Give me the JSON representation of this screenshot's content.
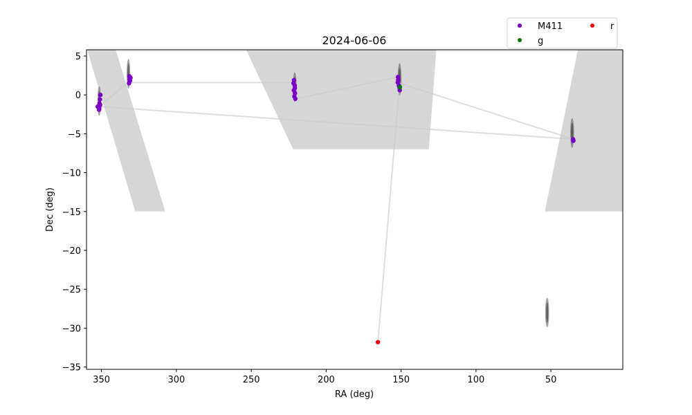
{
  "chart_data": {
    "type": "scatter",
    "title": "2024-06-06",
    "xlabel": "RA (deg)",
    "ylabel": "Dec (deg)",
    "xlim": [
      360,
      2
    ],
    "ylim": [
      -35.3,
      5.8
    ],
    "xticks": [
      350,
      300,
      250,
      200,
      150,
      100,
      50
    ],
    "yticks": [
      5,
      0,
      -5,
      -10,
      -15,
      -20,
      -25,
      -30,
      -35
    ],
    "grid": false,
    "legend": {
      "placement": "upper-right, outside plot area",
      "entries": [
        {
          "name": "M411",
          "color": "#7a00c8"
        },
        {
          "name": "g",
          "color": "#007a00"
        },
        {
          "name": "r",
          "color": "#ff0000"
        }
      ]
    },
    "footprint_color": "#b4b4b4",
    "footprint_regions": [
      {
        "ra": [
          359.5,
          340.5,
          307.5,
          327.5
        ],
        "dec": [
          [
            5.8,
            5.8
          ],
          [
            -15.0,
            -15.0
          ]
        ]
      },
      {
        "ra": [
          253.5,
          126.5,
          131.5,
          222.0
        ],
        "dec": [
          [
            5.8,
            5.8
          ],
          [
            -7.0,
            -7.0
          ]
        ]
      },
      {
        "ra": [
          32.0,
          2.0,
          2.0,
          54.0
        ],
        "dec": [
          [
            5.8,
            5.8
          ],
          [
            -15.0,
            -15.0
          ]
        ]
      }
    ],
    "dense_clusters": [
      {
        "ra": 351.5,
        "dec": -0.8,
        "ra_halfwidth": 1.2,
        "dec_halfheight": 1.9
      },
      {
        "ra": 332.0,
        "dec": 2.7,
        "ra_halfwidth": 1.2,
        "dec_halfheight": 1.9
      },
      {
        "ra": 221.0,
        "dec": 1.0,
        "ra_halfwidth": 1.3,
        "dec_halfheight": 1.9
      },
      {
        "ra": 151.0,
        "dec": 2.0,
        "ra_halfwidth": 1.3,
        "dec_halfheight": 2.1
      },
      {
        "ra": 35.8,
        "dec": -4.9,
        "ra_halfwidth": 1.3,
        "dec_halfheight": 1.9
      },
      {
        "ra": 52.5,
        "dec": -28.0,
        "ra_halfwidth": 1.3,
        "dec_halfheight": 1.9
      }
    ],
    "path": {
      "color": "#c8c8c8",
      "ra": [
        350.5,
        331.0,
        330.0,
        221.0,
        220.0,
        152.0,
        151.0,
        165.5,
        151.0,
        35.0,
        351.0
      ],
      "dec": [
        -1.3,
        1.8,
        1.6,
        1.6,
        -0.5,
        2.3,
        1.5,
        -31.8,
        1.5,
        -5.7,
        -1.5
      ]
    },
    "series": [
      {
        "name": "M411",
        "color": "#7a00c8",
        "points": [
          [
            352.5,
            -1.5
          ],
          [
            351.6,
            -1.9
          ],
          [
            351.0,
            -0.6
          ],
          [
            350.7,
            0.0
          ],
          [
            351.3,
            -1.1
          ],
          [
            350.9,
            -1.3
          ],
          [
            351.5,
            -1.7
          ],
          [
            331.4,
            2.4
          ],
          [
            331.0,
            1.8
          ],
          [
            330.6,
            2.2
          ],
          [
            331.6,
            1.5
          ],
          [
            331.2,
            2.0
          ],
          [
            221.5,
            1.9
          ],
          [
            221.0,
            1.2
          ],
          [
            221.6,
            0.6
          ],
          [
            220.8,
            0.2
          ],
          [
            221.3,
            -0.2
          ],
          [
            220.6,
            -0.5
          ],
          [
            221.8,
            1.5
          ],
          [
            220.9,
            0.9
          ],
          [
            152.1,
            2.3
          ],
          [
            152.2,
            1.6
          ],
          [
            151.5,
            1.2
          ],
          [
            151.0,
            0.9
          ],
          [
            150.9,
            0.6
          ],
          [
            152.0,
            1.9
          ],
          [
            35.2,
            -5.7
          ],
          [
            35.0,
            -5.9
          ]
        ]
      },
      {
        "name": "g",
        "color": "#007a00",
        "points": [
          [
            150.8,
            1.0
          ]
        ]
      },
      {
        "name": "r",
        "color": "#ff0000",
        "points": [
          [
            165.5,
            -31.8
          ]
        ]
      }
    ]
  }
}
